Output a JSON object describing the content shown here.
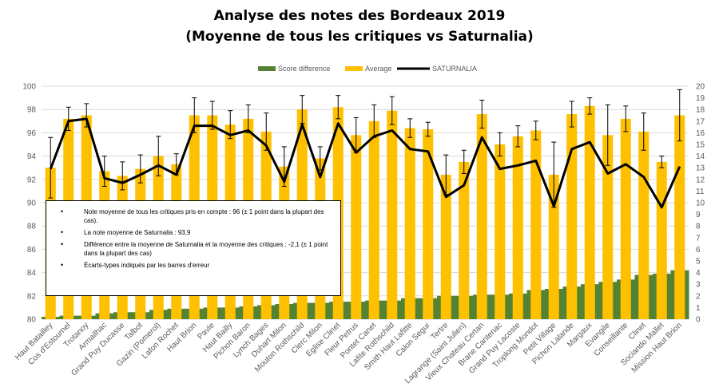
{
  "title_line1": "Analyse des notes des Bordeaux 2019",
  "title_line2": "(Moyenne de tous les critiques vs Saturnalia)",
  "legend": {
    "score_difference": "Score difference",
    "average": "Average",
    "saturnalia": "SATURNALIA"
  },
  "colors": {
    "average": "#FFC000",
    "score_difference": "#548235",
    "saturnalia": "#000000",
    "error_bar": "#000000"
  },
  "notes": [
    "Note moyenne de tous les critiques pris en compte : 96 (± 1 point dans la plupart des cas).",
    "La note moyenne de Saturnalia : 93,9",
    "Différence entre la moyenne de Saturnalia et la moyenne des critiques : -2,1 (± 1 point dans la plupart des cas)",
    "Écarts-types indiqués par les barres d'erreur"
  ],
  "chart_data": {
    "type": "bar",
    "title": "",
    "xlabel": "",
    "ylabel": "",
    "ylim_left": [
      80,
      100
    ],
    "ylim_right": [
      0,
      20
    ],
    "yticks_left": [
      "80",
      "82",
      "84",
      "86",
      "88",
      "90",
      "92",
      "94",
      "96",
      "98",
      "100"
    ],
    "yticks_right": [
      "0",
      "1",
      "2",
      "3",
      "4",
      "5",
      "6",
      "7",
      "8",
      "9",
      "10",
      "11",
      "12",
      "13",
      "14",
      "15",
      "16",
      "17",
      "18",
      "19",
      "20"
    ],
    "grid": true,
    "legend_position": "top",
    "categories": [
      "Haut Batailley",
      "Cos d'Estournel",
      "Trotanoy",
      "Armailhac",
      "Grand Puy Ducasse",
      "Talbot",
      "Gazin (Pomerol)",
      "Lafon Rochet",
      "Haut Brion",
      "Pavie",
      "Haut Bailly",
      "Pichon Baron",
      "Lynch Bages",
      "Duhart Milon",
      "Mouton Rothschild",
      "Clerc Milon",
      "Eglise Clinet",
      "Fleur Petrus",
      "Pontet Canet",
      "Lafite Rothschild",
      "Smith Haut Lafitte",
      "Calon Segur",
      "Tertre",
      "Lagrange (Saint Julien)",
      "Vieux Chateau Certan",
      "Brane Cantenac",
      "Grand Puy Lacoste",
      "Troplong Mondot",
      "Petit Village",
      "Pichon Lalande",
      "Margaux",
      "Evangile",
      "Conseillante",
      "Clinet",
      "Sociando Mallet",
      "Mission Haut Brion"
    ],
    "series": [
      {
        "name": "Average",
        "axis": "left",
        "values": [
          93.0,
          97.2,
          97.5,
          92.7,
          92.3,
          92.9,
          94.0,
          93.3,
          97.5,
          97.5,
          96.7,
          97.2,
          96.1,
          93.1,
          98.0,
          93.8,
          98.2,
          95.8,
          97.0,
          97.9,
          96.4,
          96.3,
          92.4,
          93.5,
          97.6,
          95.0,
          95.7,
          96.2,
          92.4,
          97.6,
          98.3,
          95.8,
          97.2,
          96.1,
          93.5,
          97.5
        ],
        "error": [
          2.6,
          1.0,
          1.0,
          1.3,
          1.2,
          1.2,
          1.7,
          0.9,
          1.5,
          1.2,
          1.2,
          1.2,
          1.6,
          1.7,
          1.2,
          1.0,
          1.0,
          1.5,
          1.4,
          1.2,
          0.8,
          0.6,
          1.7,
          1.0,
          1.2,
          1.0,
          0.9,
          0.8,
          2.8,
          1.1,
          0.7,
          2.6,
          1.1,
          1.6,
          0.5,
          2.2
        ]
      },
      {
        "name": "Score difference",
        "axis": "right",
        "values": [
          0.2,
          0.3,
          0.3,
          0.5,
          0.6,
          0.6,
          0.8,
          0.9,
          0.9,
          1.0,
          1.0,
          1.1,
          1.2,
          1.3,
          1.4,
          1.4,
          1.5,
          1.5,
          1.6,
          1.6,
          1.8,
          1.8,
          2.0,
          2.0,
          2.1,
          2.1,
          2.2,
          2.5,
          2.6,
          2.8,
          3.0,
          3.2,
          3.4,
          3.8,
          3.9,
          4.2
        ]
      },
      {
        "name": "SATURNALIA",
        "axis": "left",
        "type": "line",
        "values": [
          92.9,
          97.0,
          97.2,
          92.1,
          91.7,
          92.4,
          93.2,
          92.4,
          96.6,
          96.6,
          95.8,
          96.2,
          94.9,
          91.8,
          96.7,
          92.2,
          96.8,
          94.3,
          95.7,
          96.2,
          94.6,
          94.4,
          90.5,
          91.5,
          95.6,
          92.9,
          93.2,
          93.6,
          89.7,
          94.6,
          95.2,
          92.5,
          93.3,
          92.2,
          89.6,
          93.1
        ]
      }
    ]
  }
}
